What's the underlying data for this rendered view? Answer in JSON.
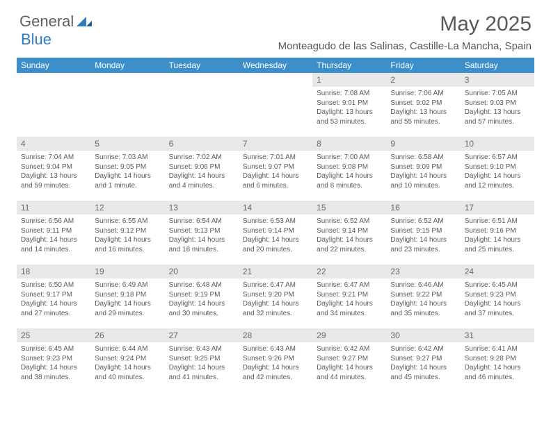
{
  "brand": {
    "part1": "General",
    "part2": "Blue"
  },
  "title": "May 2025",
  "location": "Monteagudo de las Salinas, Castille-La Mancha, Spain",
  "colors": {
    "header_bar": "#3d8fc9",
    "day_header_bg": "#e8e8e8",
    "text": "#5a5a5a",
    "brand_accent": "#2f7ec0"
  },
  "weekdays": [
    "Sunday",
    "Monday",
    "Tuesday",
    "Wednesday",
    "Thursday",
    "Friday",
    "Saturday"
  ],
  "weeks": [
    [
      null,
      null,
      null,
      null,
      {
        "n": "1",
        "sunrise": "7:08 AM",
        "sunset": "9:01 PM",
        "daylight": "13 hours and 53 minutes."
      },
      {
        "n": "2",
        "sunrise": "7:06 AM",
        "sunset": "9:02 PM",
        "daylight": "13 hours and 55 minutes."
      },
      {
        "n": "3",
        "sunrise": "7:05 AM",
        "sunset": "9:03 PM",
        "daylight": "13 hours and 57 minutes."
      }
    ],
    [
      {
        "n": "4",
        "sunrise": "7:04 AM",
        "sunset": "9:04 PM",
        "daylight": "13 hours and 59 minutes."
      },
      {
        "n": "5",
        "sunrise": "7:03 AM",
        "sunset": "9:05 PM",
        "daylight": "14 hours and 1 minute."
      },
      {
        "n": "6",
        "sunrise": "7:02 AM",
        "sunset": "9:06 PM",
        "daylight": "14 hours and 4 minutes."
      },
      {
        "n": "7",
        "sunrise": "7:01 AM",
        "sunset": "9:07 PM",
        "daylight": "14 hours and 6 minutes."
      },
      {
        "n": "8",
        "sunrise": "7:00 AM",
        "sunset": "9:08 PM",
        "daylight": "14 hours and 8 minutes."
      },
      {
        "n": "9",
        "sunrise": "6:58 AM",
        "sunset": "9:09 PM",
        "daylight": "14 hours and 10 minutes."
      },
      {
        "n": "10",
        "sunrise": "6:57 AM",
        "sunset": "9:10 PM",
        "daylight": "14 hours and 12 minutes."
      }
    ],
    [
      {
        "n": "11",
        "sunrise": "6:56 AM",
        "sunset": "9:11 PM",
        "daylight": "14 hours and 14 minutes."
      },
      {
        "n": "12",
        "sunrise": "6:55 AM",
        "sunset": "9:12 PM",
        "daylight": "14 hours and 16 minutes."
      },
      {
        "n": "13",
        "sunrise": "6:54 AM",
        "sunset": "9:13 PM",
        "daylight": "14 hours and 18 minutes."
      },
      {
        "n": "14",
        "sunrise": "6:53 AM",
        "sunset": "9:14 PM",
        "daylight": "14 hours and 20 minutes."
      },
      {
        "n": "15",
        "sunrise": "6:52 AM",
        "sunset": "9:14 PM",
        "daylight": "14 hours and 22 minutes."
      },
      {
        "n": "16",
        "sunrise": "6:52 AM",
        "sunset": "9:15 PM",
        "daylight": "14 hours and 23 minutes."
      },
      {
        "n": "17",
        "sunrise": "6:51 AM",
        "sunset": "9:16 PM",
        "daylight": "14 hours and 25 minutes."
      }
    ],
    [
      {
        "n": "18",
        "sunrise": "6:50 AM",
        "sunset": "9:17 PM",
        "daylight": "14 hours and 27 minutes."
      },
      {
        "n": "19",
        "sunrise": "6:49 AM",
        "sunset": "9:18 PM",
        "daylight": "14 hours and 29 minutes."
      },
      {
        "n": "20",
        "sunrise": "6:48 AM",
        "sunset": "9:19 PM",
        "daylight": "14 hours and 30 minutes."
      },
      {
        "n": "21",
        "sunrise": "6:47 AM",
        "sunset": "9:20 PM",
        "daylight": "14 hours and 32 minutes."
      },
      {
        "n": "22",
        "sunrise": "6:47 AM",
        "sunset": "9:21 PM",
        "daylight": "14 hours and 34 minutes."
      },
      {
        "n": "23",
        "sunrise": "6:46 AM",
        "sunset": "9:22 PM",
        "daylight": "14 hours and 35 minutes."
      },
      {
        "n": "24",
        "sunrise": "6:45 AM",
        "sunset": "9:23 PM",
        "daylight": "14 hours and 37 minutes."
      }
    ],
    [
      {
        "n": "25",
        "sunrise": "6:45 AM",
        "sunset": "9:23 PM",
        "daylight": "14 hours and 38 minutes."
      },
      {
        "n": "26",
        "sunrise": "6:44 AM",
        "sunset": "9:24 PM",
        "daylight": "14 hours and 40 minutes."
      },
      {
        "n": "27",
        "sunrise": "6:43 AM",
        "sunset": "9:25 PM",
        "daylight": "14 hours and 41 minutes."
      },
      {
        "n": "28",
        "sunrise": "6:43 AM",
        "sunset": "9:26 PM",
        "daylight": "14 hours and 42 minutes."
      },
      {
        "n": "29",
        "sunrise": "6:42 AM",
        "sunset": "9:27 PM",
        "daylight": "14 hours and 44 minutes."
      },
      {
        "n": "30",
        "sunrise": "6:42 AM",
        "sunset": "9:27 PM",
        "daylight": "14 hours and 45 minutes."
      },
      {
        "n": "31",
        "sunrise": "6:41 AM",
        "sunset": "9:28 PM",
        "daylight": "14 hours and 46 minutes."
      }
    ]
  ],
  "labels": {
    "sunrise": "Sunrise: ",
    "sunset": "Sunset: ",
    "daylight": "Daylight: "
  }
}
